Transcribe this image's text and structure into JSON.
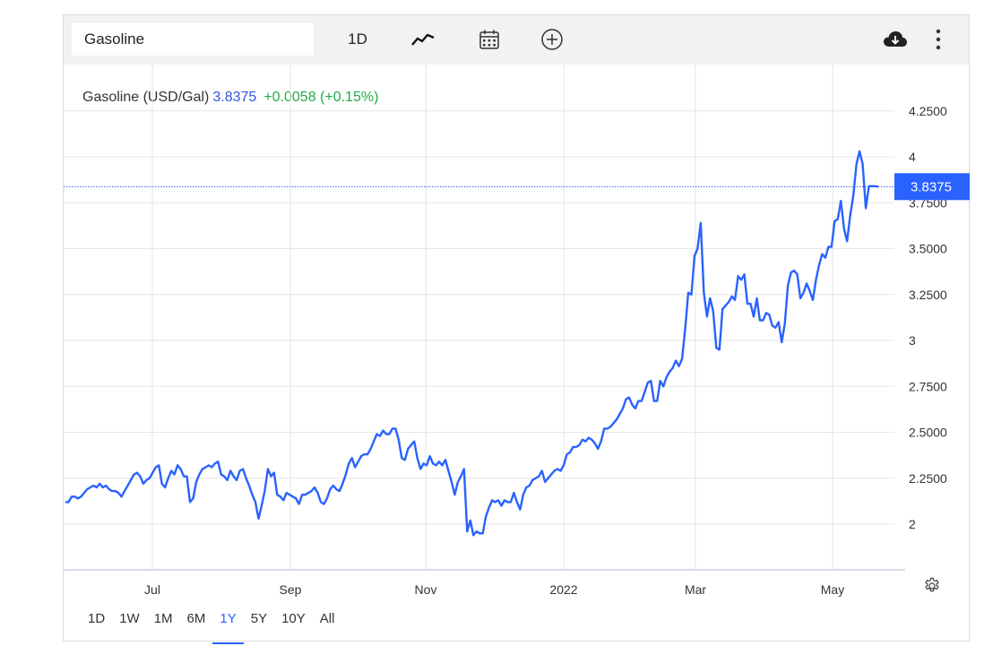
{
  "toolbar": {
    "symbol_value": "Gasoline",
    "interval_label": "1D",
    "icons": [
      "line-chart-icon",
      "calendar-icon",
      "plus-circle-icon",
      "cloud-download-icon",
      "more-vertical-icon"
    ]
  },
  "legend": {
    "name": "Gasoline (USD/Gal)",
    "price": "3.8375",
    "change": "+0.0058 (+0.15%)"
  },
  "range_buttons": [
    "1D",
    "1W",
    "1M",
    "6M",
    "1Y",
    "5Y",
    "10Y",
    "All"
  ],
  "active_range": "1Y",
  "colors": {
    "line": "#2962ff",
    "price_tag": "#2962ff",
    "change_positive": "#22aa44"
  },
  "chart_data": {
    "type": "line",
    "series": [
      {
        "values": [
          2.12,
          2.12,
          2.15,
          2.15,
          2.14,
          2.15,
          2.17,
          2.19,
          2.2,
          2.21,
          2.2,
          2.22,
          2.2,
          2.21,
          2.19,
          2.18,
          2.18,
          2.17,
          2.15,
          2.18,
          2.21,
          2.24,
          2.27,
          2.28,
          2.26,
          2.22,
          2.24,
          2.25,
          2.28,
          2.31,
          2.32,
          2.22,
          2.2,
          2.25,
          2.29,
          2.27,
          2.32,
          2.3,
          2.26,
          2.26,
          2.12,
          2.14,
          2.23,
          2.27,
          2.3,
          2.31,
          2.32,
          2.31,
          2.33,
          2.34,
          2.27,
          2.26,
          2.24,
          2.29,
          2.26,
          2.24,
          2.29,
          2.3,
          2.25,
          2.21,
          2.16,
          2.12,
          2.03,
          2.1,
          2.18,
          2.3,
          2.26,
          2.28,
          2.16,
          2.15,
          2.13,
          2.17,
          2.16,
          2.15,
          2.14,
          2.11,
          2.16,
          2.16,
          2.17,
          2.18,
          2.2,
          2.17,
          2.12,
          2.11,
          2.14,
          2.19,
          2.21,
          2.19,
          2.18,
          2.22,
          2.27,
          2.33,
          2.36,
          2.31,
          2.34,
          2.37,
          2.38,
          2.38,
          2.41,
          2.45,
          2.49,
          2.48,
          2.51,
          2.49,
          2.49,
          2.52,
          2.52,
          2.46,
          2.36,
          2.35,
          2.41,
          2.43,
          2.45,
          2.36,
          2.3,
          2.33,
          2.32,
          2.37,
          2.33,
          2.32,
          2.34,
          2.32,
          2.35,
          2.29,
          2.23,
          2.16,
          2.23,
          2.26,
          2.3,
          1.96,
          2.02,
          1.94,
          1.96,
          1.95,
          1.95,
          2.04,
          2.09,
          2.13,
          2.12,
          2.13,
          2.1,
          2.13,
          2.12,
          2.12,
          2.17,
          2.12,
          2.08,
          2.16,
          2.2,
          2.21,
          2.24,
          2.25,
          2.26,
          2.29,
          2.23,
          2.25,
          2.27,
          2.29,
          2.3,
          2.29,
          2.32,
          2.38,
          2.39,
          2.42,
          2.42,
          2.43,
          2.46,
          2.45,
          2.47,
          2.46,
          2.44,
          2.41,
          2.45,
          2.52,
          2.52,
          2.53,
          2.55,
          2.57,
          2.6,
          2.63,
          2.68,
          2.69,
          2.65,
          2.63,
          2.67,
          2.67,
          2.72,
          2.77,
          2.78,
          2.67,
          2.67,
          2.78,
          2.75,
          2.8,
          2.83,
          2.85,
          2.89,
          2.86,
          2.9,
          3.06,
          3.26,
          3.25,
          3.46,
          3.5,
          3.64,
          3.26,
          3.13,
          3.23,
          3.16,
          2.96,
          2.95,
          3.17,
          3.19,
          3.21,
          3.24,
          3.22,
          3.35,
          3.33,
          3.36,
          3.2,
          3.2,
          3.13,
          3.23,
          3.11,
          3.11,
          3.15,
          3.14,
          3.08,
          3.07,
          3.1,
          2.99,
          3.09,
          3.3,
          3.37,
          3.38,
          3.36,
          3.23,
          3.26,
          3.31,
          3.27,
          3.22,
          3.33,
          3.41,
          3.47,
          3.45,
          3.51,
          3.51,
          3.65,
          3.66,
          3.76,
          3.61,
          3.54,
          3.68,
          3.79,
          3.96,
          4.03,
          3.96,
          3.72,
          3.84,
          3.84,
          3.84,
          3.8375
        ]
      }
    ],
    "x_ticks": [
      "Jul",
      "Sep",
      "Nov",
      "2022",
      "Mar",
      "May"
    ],
    "y_ticks": [
      "2",
      "2.2500",
      "2.5000",
      "2.7500",
      "3",
      "3.2500",
      "3.5000",
      "3.7500",
      "4",
      "4.2500"
    ],
    "last_value": "3.8375",
    "ylim": [
      1.75,
      4.25
    ],
    "grid": true
  }
}
